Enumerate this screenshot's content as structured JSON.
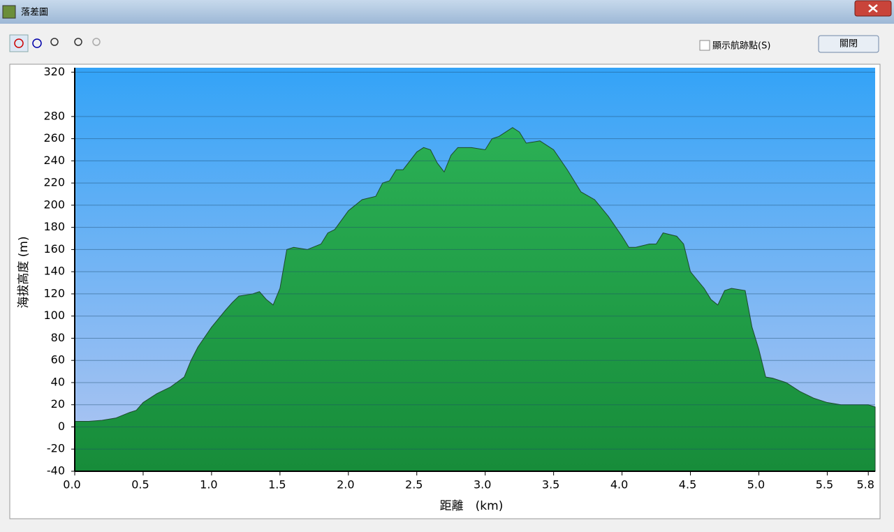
{
  "window": {
    "title": "落差圖",
    "checkbox_label": "顯示航跡點(S)",
    "close_button": "關閉"
  },
  "chart_data": {
    "type": "area",
    "x_label": "距離　(km)",
    "y_label": "海拔高度 (m)",
    "x": [
      0.0,
      0.1,
      0.2,
      0.3,
      0.4,
      0.45,
      0.5,
      0.6,
      0.7,
      0.8,
      0.85,
      0.9,
      1.0,
      1.1,
      1.15,
      1.2,
      1.3,
      1.35,
      1.4,
      1.45,
      1.5,
      1.55,
      1.6,
      1.7,
      1.8,
      1.85,
      1.9,
      2.0,
      2.1,
      2.2,
      2.25,
      2.3,
      2.35,
      2.4,
      2.5,
      2.55,
      2.6,
      2.65,
      2.7,
      2.75,
      2.8,
      2.9,
      3.0,
      3.05,
      3.1,
      3.15,
      3.2,
      3.25,
      3.3,
      3.4,
      3.5,
      3.6,
      3.7,
      3.8,
      3.9,
      4.0,
      4.05,
      4.1,
      4.2,
      4.25,
      4.3,
      4.4,
      4.45,
      4.5,
      4.6,
      4.65,
      4.7,
      4.75,
      4.8,
      4.9,
      4.95,
      5.0,
      5.05,
      5.1,
      5.2,
      5.3,
      5.4,
      5.5,
      5.6,
      5.7,
      5.8,
      5.85
    ],
    "values": [
      5,
      5,
      6,
      8,
      13,
      15,
      22,
      30,
      36,
      45,
      60,
      72,
      90,
      105,
      112,
      118,
      120,
      122,
      115,
      110,
      125,
      160,
      162,
      160,
      165,
      175,
      178,
      195,
      205,
      208,
      220,
      222,
      232,
      232,
      248,
      252,
      250,
      238,
      230,
      245,
      252,
      252,
      250,
      260,
      262,
      266,
      270,
      266,
      256,
      258,
      250,
      232,
      212,
      205,
      190,
      172,
      162,
      162,
      165,
      165,
      175,
      172,
      165,
      140,
      125,
      115,
      110,
      123,
      125,
      123,
      90,
      70,
      45,
      44,
      40,
      32,
      26,
      22,
      20,
      20,
      20,
      18
    ],
    "color": "#1f9a45",
    "xlim": [
      0,
      5.85
    ],
    "ylim": [
      -40,
      324
    ],
    "xticks": [
      {
        "value": 0,
        "label": "0.0"
      },
      0.5,
      {
        "value": 1,
        "label": "1.0"
      },
      1.5,
      {
        "value": 2,
        "label": "2.0"
      },
      2.5,
      {
        "value": 3,
        "label": "3.0"
      },
      3.5,
      {
        "value": 4,
        "label": "4.0"
      },
      4.5,
      {
        "value": 5,
        "label": "5.0"
      },
      5.5,
      5.8
    ],
    "yticks": [
      -40,
      -20,
      0,
      20,
      40,
      60,
      80,
      100,
      120,
      140,
      160,
      180,
      200,
      220,
      240,
      260,
      280,
      320
    ],
    "grid": true
  }
}
